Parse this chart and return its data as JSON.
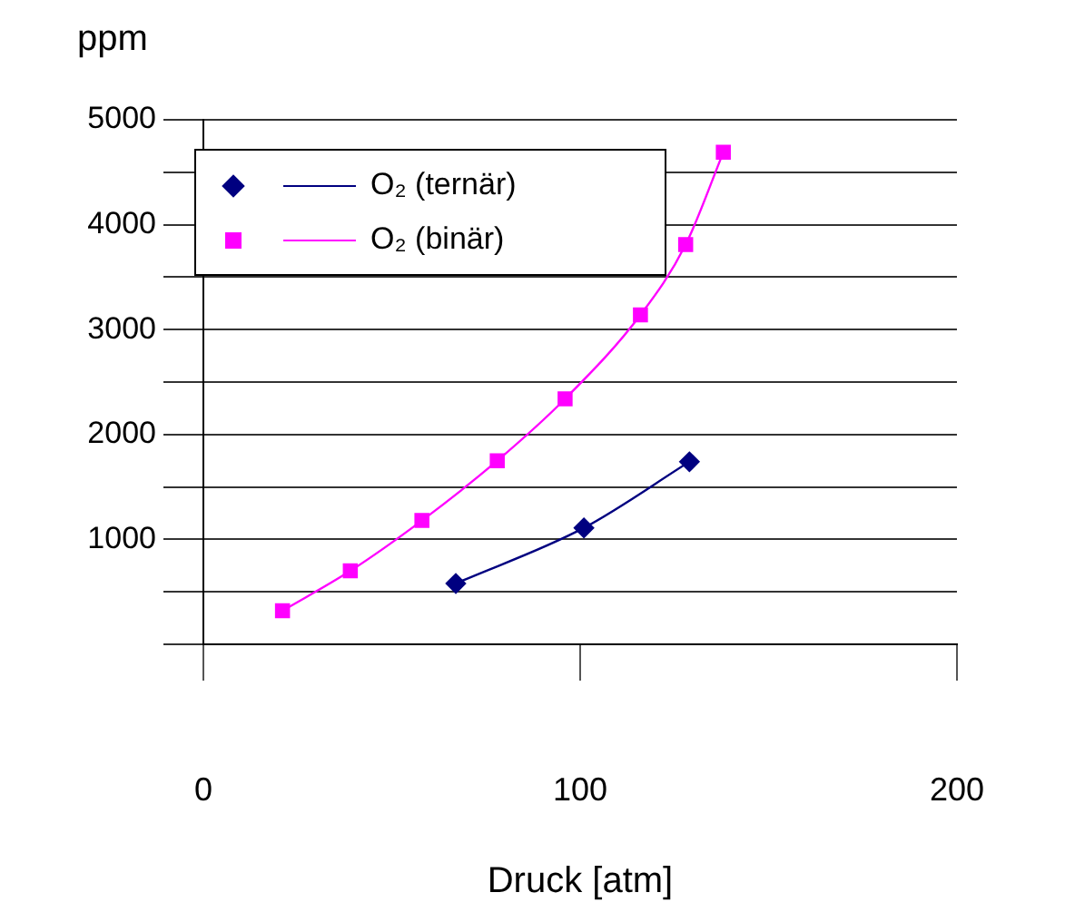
{
  "chart_data": {
    "type": "line",
    "xlabel": "Druck [atm]",
    "ylabel": "ppm",
    "series": [
      {
        "name": "O₂ (ternär)",
        "color": "#000080",
        "marker": "diamond",
        "x": [
          67,
          101,
          129
        ],
        "values": [
          580,
          1110,
          1740
        ]
      },
      {
        "name": "O₂ (binär)",
        "color": "#ff00ff",
        "marker": "square",
        "x": [
          21,
          39,
          58,
          78,
          96,
          116,
          128,
          138
        ],
        "values": [
          320,
          700,
          1180,
          1750,
          2340,
          3140,
          3810,
          4690
        ]
      }
    ],
    "xlim": [
      0,
      200
    ],
    "xticks": [
      0,
      100,
      200
    ],
    "ylim": [
      0,
      5000
    ],
    "yticks": [
      {
        "value": 0,
        "label": null
      },
      {
        "value": 500,
        "label": null
      },
      1000,
      {
        "value": 1500,
        "label": null
      },
      2000,
      {
        "value": 2500,
        "label": null
      },
      3000,
      {
        "value": 3500,
        "label": null
      },
      4000,
      {
        "value": 4500,
        "label": null
      },
      5000
    ],
    "grid": "y",
    "legend": "top left"
  }
}
